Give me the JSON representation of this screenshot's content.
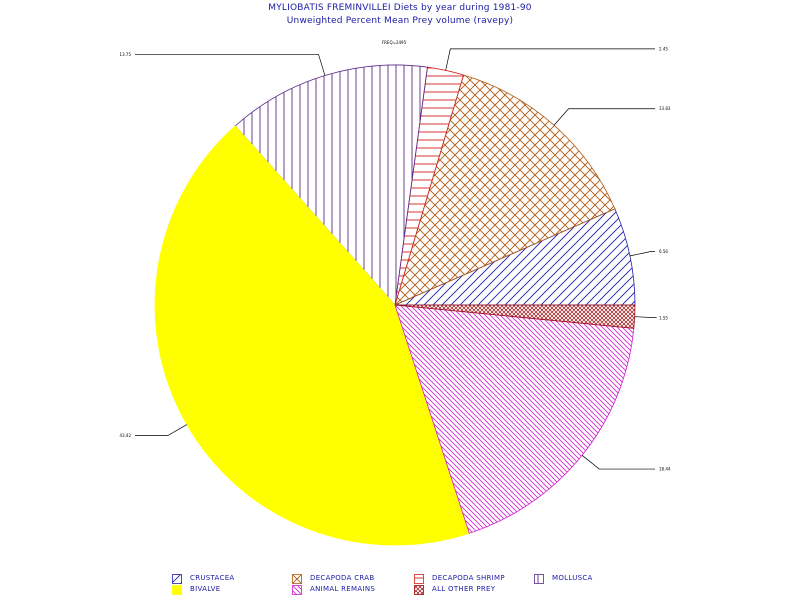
{
  "title": "MYLIOBATIS FREMINVILLEI Diets by year during 1981-90",
  "subtitle": "Unweighted Percent Mean Prey volume (ravepy)",
  "top_note": "FREQ=2495",
  "chart_data": {
    "type": "pie",
    "slices": [
      {
        "name": "MOLLUSCA",
        "value": 13.75,
        "label": "13.75",
        "color": "#5a2a8a",
        "pattern": "vertical"
      },
      {
        "name": "DECAPODA SHRIMP",
        "value": 2.45,
        "label": "2.45",
        "color": "#d42020",
        "pattern": "horizontal"
      },
      {
        "name": "DECAPODA CRAB",
        "value": 13.83,
        "label": "13.83",
        "color": "#b05a10",
        "pattern": "crosshatch"
      },
      {
        "name": "CRUSTACEA",
        "value": 6.56,
        "label": "6.56",
        "color": "#2020b0",
        "pattern": "diagonal-up"
      },
      {
        "name": "ALL OTHER PREY",
        "value": 1.55,
        "label": "1.55",
        "color": "#a01010",
        "pattern": "fine-crosshatch"
      },
      {
        "name": "ANIMAL REMAINS",
        "value": 18.44,
        "label": "18.44",
        "color": "#d020d0",
        "pattern": "diagonal-down"
      },
      {
        "name": "BIVALVE",
        "value": 43.42,
        "label": "43.42",
        "color": "#ffff00",
        "pattern": "solid"
      }
    ]
  },
  "legend": [
    {
      "label": "CRUSTACEA",
      "color": "#2020b0",
      "pattern": "diagonal-up"
    },
    {
      "label": "DECAPODA CRAB",
      "color": "#b05a10",
      "pattern": "crosshatch"
    },
    {
      "label": "DECAPODA SHRIMP",
      "color": "#d42020",
      "pattern": "horizontal"
    },
    {
      "label": "MOLLUSCA",
      "color": "#5a2a8a",
      "pattern": "vertical"
    },
    {
      "label": "BIVALVE",
      "color": "#ffff00",
      "pattern": "solid"
    },
    {
      "label": "ANIMAL REMAINS",
      "color": "#d020d0",
      "pattern": "diagonal-down"
    },
    {
      "label": "ALL OTHER PREY",
      "color": "#a01010",
      "pattern": "fine-crosshatch"
    }
  ]
}
